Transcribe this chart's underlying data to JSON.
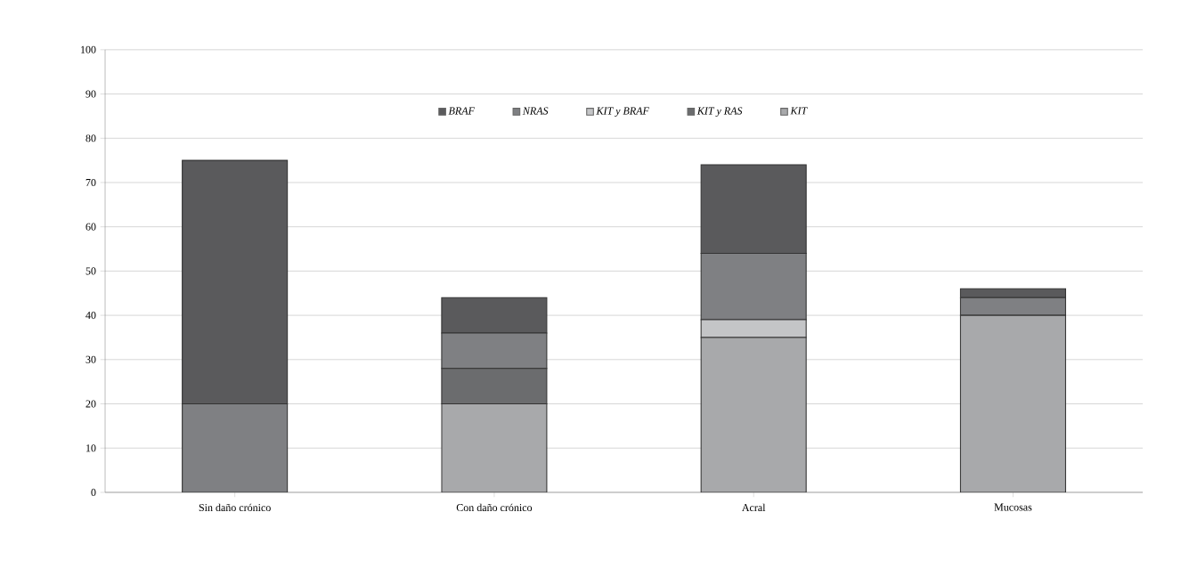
{
  "chart_data": {
    "type": "bar",
    "stacked": true,
    "categories": [
      "Sin daño crónico",
      "Con daño crónico",
      "Acral",
      "Mucosas"
    ],
    "series": [
      {
        "name": "KIT",
        "color": "#a8a9ab",
        "values": [
          0,
          20,
          35,
          40
        ]
      },
      {
        "name": "KIT y RAS",
        "color": "#6b6c6e",
        "values": [
          0,
          8,
          0,
          0
        ]
      },
      {
        "name": "KIT y BRAF",
        "color": "#c4c5c7",
        "values": [
          0,
          0,
          4,
          0
        ]
      },
      {
        "name": "NRAS",
        "color": "#7f8083",
        "values": [
          20,
          8,
          15,
          4
        ]
      },
      {
        "name": "BRAF",
        "color": "#5a5a5c",
        "values": [
          55,
          8,
          20,
          2
        ]
      }
    ],
    "ylim": [
      0,
      100
    ],
    "yticks": [
      0,
      10,
      20,
      30,
      40,
      50,
      60,
      70,
      80,
      90,
      100
    ],
    "grid": "y",
    "legend": "top"
  }
}
